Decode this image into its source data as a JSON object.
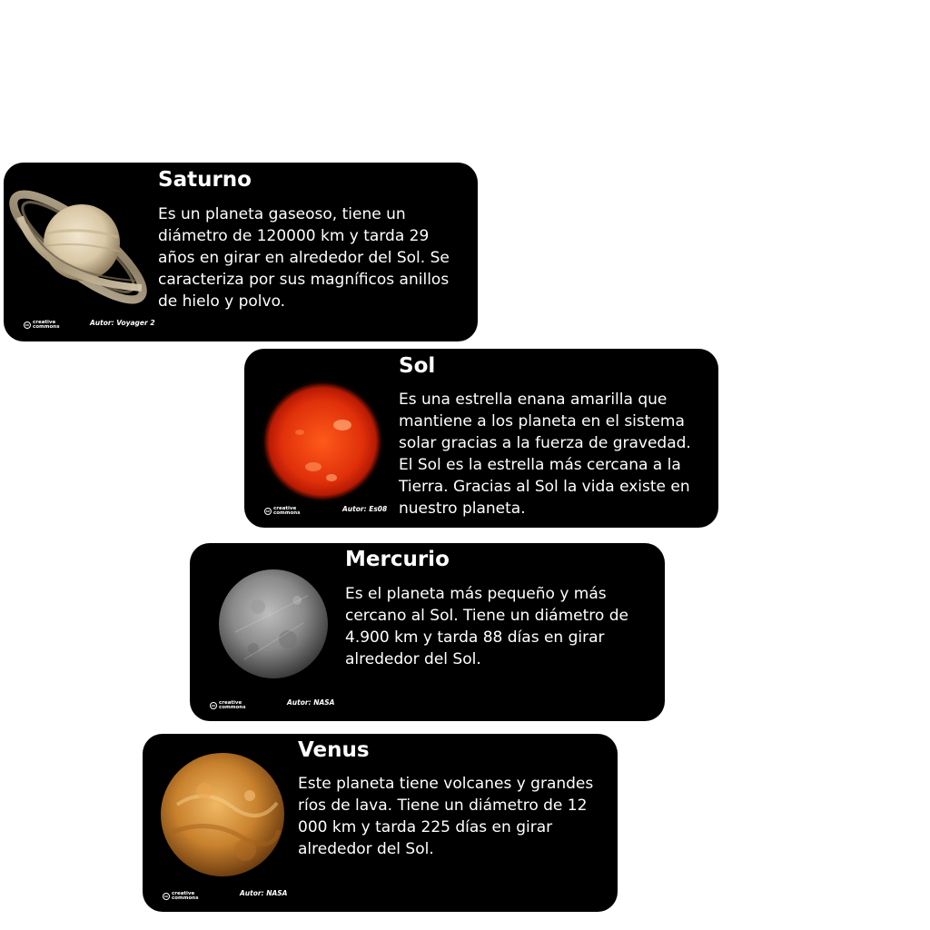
{
  "cards": [
    {
      "title": "Saturno",
      "description": "Es un planeta gaseoso, tiene un diámetro de 120000 km y tarda 29 años en girar en alrededor del Sol. Se caracteriza por sus magníficos anillos de hielo y polvo.",
      "license_line1": "creative",
      "license_line2": "commons",
      "author": "Autor: Voyager 2",
      "image": "saturn-image"
    },
    {
      "title": "Sol",
      "description": "Es una estrella enana amarilla que mantiene a los planeta en el sistema solar gracias a la fuerza de gravedad. El Sol es la estrella más cercana a la Tierra. Gracias al Sol la vida existe en nuestro planeta.",
      "license_line1": "creative",
      "license_line2": "commons",
      "author": "Autor: Es08",
      "image": "sun-image"
    },
    {
      "title": "Mercurio",
      "description": "Es el planeta más pequeño y más cercano al Sol. Tiene un diámetro de 4.900 km y tarda 88 días en girar alrededor del Sol.",
      "license_line1": "creative",
      "license_line2": "commons",
      "author": "Autor: NASA",
      "image": "mercury-image"
    },
    {
      "title": "Venus",
      "description": "Este planeta tiene volcanes y grandes ríos de lava. Tiene un diámetro de 12 000 km y tarda 225 días en girar alrededor del Sol.",
      "license_line1": "creative",
      "license_line2": "commons",
      "author": "Autor: NASA",
      "image": "venus-image"
    }
  ],
  "colors": {
    "card_background": "#000000",
    "text": "#ffffff",
    "page_background": "#ffffff"
  }
}
